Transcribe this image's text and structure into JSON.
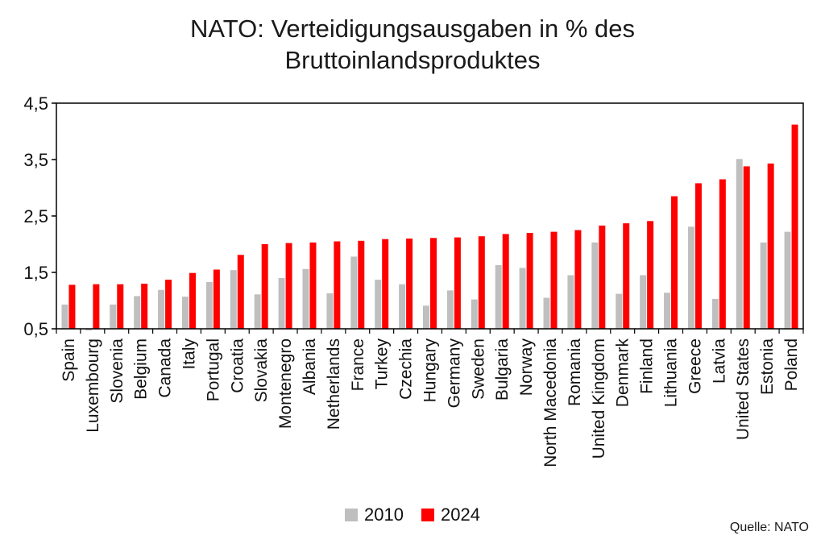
{
  "chart_data": {
    "type": "bar",
    "title_lines": [
      "NATO: Verteidigungsausgaben in % des",
      "Bruttoinlandsproduktes"
    ],
    "xlabel": "",
    "ylabel": "",
    "ylim": [
      0.5,
      4.5
    ],
    "yticks": [
      "4,5",
      "3,5",
      "2,5",
      "1,5",
      "0,5"
    ],
    "ytick_values": [
      4.5,
      3.5,
      2.5,
      1.5,
      0.5
    ],
    "grid": false,
    "legend_position": "bottom-center",
    "categories": [
      "Spain",
      "Luxembourg",
      "Slovenia",
      "Belgium",
      "Canada",
      "Italy",
      "Portugal",
      "Croatia",
      "Slovakia",
      "Montenegro",
      "Albania",
      "Netherlands",
      "France",
      "Turkey",
      "Czechia",
      "Hungary",
      "Germany",
      "Sweden",
      "Bulgaria",
      "Norway",
      "North Macedonia",
      "Romania",
      "United Kingdom",
      "Denmark",
      "Finland",
      "Lithuania",
      "Greece",
      "Latvia",
      "United States",
      "Estonia",
      "Poland"
    ],
    "series": [
      {
        "name": "2010",
        "color": "#bfbfbf",
        "values": [
          0.93,
          0.47,
          0.93,
          1.08,
          1.19,
          1.07,
          1.33,
          1.54,
          1.11,
          1.4,
          1.56,
          1.13,
          1.78,
          1.37,
          1.29,
          0.91,
          1.18,
          1.02,
          1.63,
          1.58,
          1.05,
          1.45,
          2.03,
          1.12,
          1.45,
          1.14,
          2.31,
          1.03,
          3.51,
          2.03,
          2.22
        ]
      },
      {
        "name": "2024",
        "color": "#ff0000",
        "values": [
          1.28,
          1.29,
          1.29,
          1.3,
          1.37,
          1.49,
          1.55,
          1.81,
          2.0,
          2.02,
          2.03,
          2.05,
          2.06,
          2.09,
          2.1,
          2.11,
          2.12,
          2.14,
          2.18,
          2.2,
          2.22,
          2.25,
          2.33,
          2.37,
          2.41,
          2.85,
          3.08,
          3.15,
          3.38,
          3.43,
          4.12
        ]
      }
    ]
  },
  "legend": {
    "label_2010": "2010",
    "label_2024": "2024",
    "color_2010": "#bfbfbf",
    "color_2024": "#ff0000"
  },
  "source": "Quelle: NATO"
}
